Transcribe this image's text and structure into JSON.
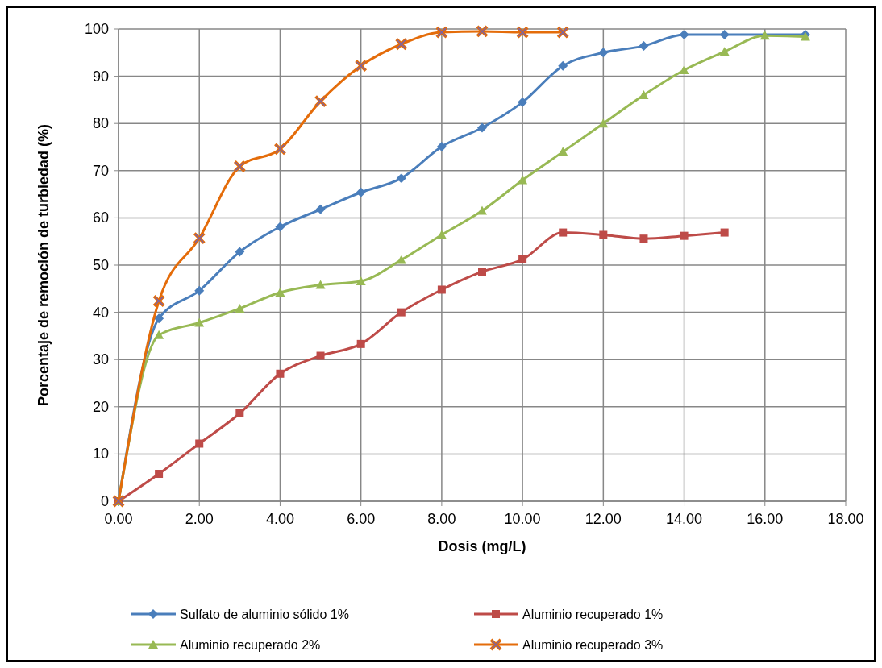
{
  "chart_data": {
    "type": "line",
    "xlabel": "Dosis (mg/L)",
    "ylabel": "Porcentaje de remoción de turbiedad  (%)",
    "xlim": [
      0,
      18
    ],
    "xticks": [
      {
        "value": 0,
        "label": "0.00"
      },
      {
        "value": 2,
        "label": "2.00"
      },
      {
        "value": 4,
        "label": "4.00"
      },
      {
        "value": 6,
        "label": "6.00"
      },
      {
        "value": 8,
        "label": "8.00"
      },
      {
        "value": 10,
        "label": "10.00"
      },
      {
        "value": 12,
        "label": "12.00"
      },
      {
        "value": 14,
        "label": "14.00"
      },
      {
        "value": 16,
        "label": "16.00"
      },
      {
        "value": 18,
        "label": "18.00"
      }
    ],
    "ylim": [
      0,
      100
    ],
    "yticks": [
      0,
      10,
      20,
      30,
      40,
      50,
      60,
      70,
      80,
      90,
      100
    ],
    "grid": true,
    "legend": "bottom",
    "line_style": "solid",
    "series": [
      {
        "name": "Sulfato de aluminio sólido 1%",
        "color": "#4a7ebb",
        "marker": "diamond",
        "x": [
          0,
          1,
          2,
          3,
          4,
          5,
          6,
          7,
          8,
          9,
          10,
          11,
          12,
          13,
          14,
          15,
          16,
          17
        ],
        "values": [
          0,
          38.7,
          44.6,
          52.8,
          58.1,
          61.8,
          65.4,
          68.4,
          75.1,
          79.1,
          84.5,
          92.2,
          95.0,
          96.4,
          98.8,
          98.8,
          null,
          98.8
        ]
      },
      {
        "name": "Aluminio recuperado 1%",
        "color": "#be4b48",
        "marker": "square",
        "x": [
          0,
          1,
          2,
          3,
          4,
          5,
          6,
          7,
          8,
          9,
          10,
          11,
          12,
          13,
          14,
          15
        ],
        "values": [
          0,
          5.8,
          12.2,
          18.6,
          27.0,
          30.8,
          33.3,
          40.0,
          44.8,
          48.6,
          51.2,
          56.9,
          56.4,
          55.6,
          56.2,
          56.9
        ]
      },
      {
        "name": "Aluminio recuperado 2%",
        "color": "#98b954",
        "marker": "triangle",
        "x": [
          0,
          1,
          2,
          3,
          4,
          5,
          6,
          7,
          8,
          9,
          10,
          11,
          12,
          13,
          14,
          15,
          16,
          17
        ],
        "values": [
          0,
          35.2,
          37.8,
          40.8,
          44.2,
          45.8,
          46.6,
          51.1,
          56.4,
          61.5,
          68.0,
          74.0,
          80.0,
          86.0,
          91.3,
          95.2,
          98.6,
          98.4
        ]
      },
      {
        "name": "Aluminio recuperado 3%",
        "color": "#e46c0a",
        "marker": "cross",
        "x": [
          0,
          1,
          2,
          3,
          4,
          5,
          6,
          7,
          8,
          9,
          10,
          11
        ],
        "values": [
          0,
          42.4,
          55.7,
          70.9,
          74.6,
          84.7,
          92.2,
          96.8,
          99.3,
          99.5,
          99.3,
          99.3
        ]
      }
    ]
  }
}
